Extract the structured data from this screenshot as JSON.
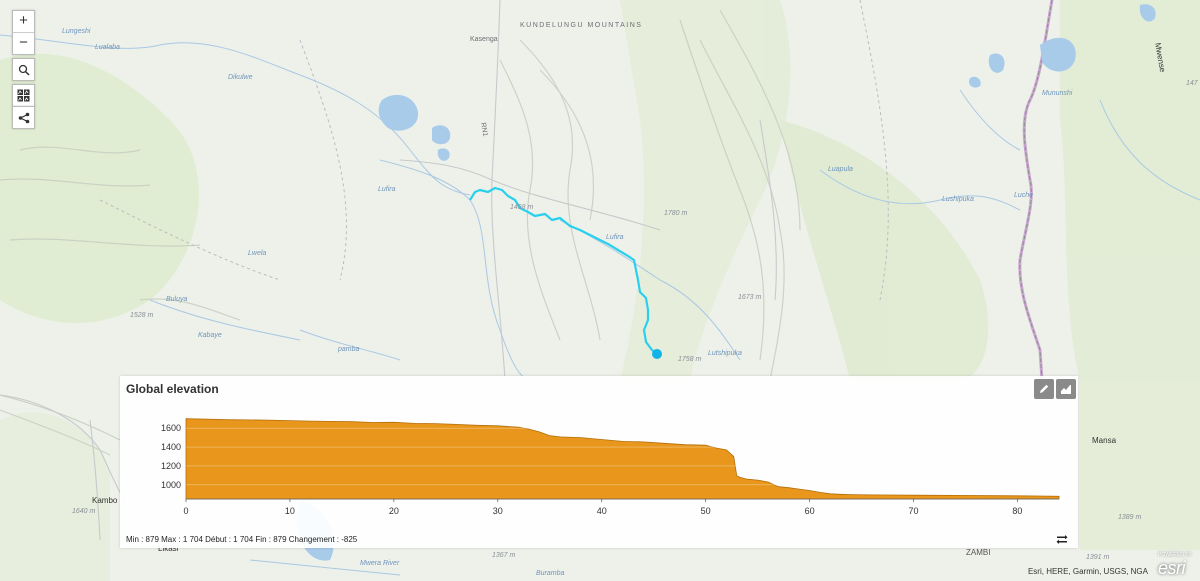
{
  "map": {
    "mountain_label": "KUNDELUNGU MOUNTAINS",
    "labels": [
      {
        "id": "lungeshi",
        "text": "Lungeshi",
        "kind": "river"
      },
      {
        "id": "lualaba",
        "text": "Lualaba",
        "kind": "river"
      },
      {
        "id": "dikulwe",
        "text": "Dikulwe",
        "kind": "river"
      },
      {
        "id": "kasenga",
        "text": "Kasenga",
        "kind": "river"
      },
      {
        "id": "lufira",
        "text": "Lufira",
        "kind": "river"
      },
      {
        "id": "luapula",
        "text": "Luapula",
        "kind": "river"
      },
      {
        "id": "lufira2",
        "text": "Lufira",
        "kind": "river"
      },
      {
        "id": "lutshipuka",
        "text": "Lutshipuka",
        "kind": "river"
      },
      {
        "id": "lushipuka",
        "text": "Lushipuka",
        "kind": "river"
      },
      {
        "id": "mununshi",
        "text": "Mununshi",
        "kind": "river"
      },
      {
        "id": "buluya",
        "text": "Buluya",
        "kind": "river"
      },
      {
        "id": "kabaye",
        "text": "Kabaye",
        "kind": "river"
      },
      {
        "id": "lwela",
        "text": "Lwela",
        "kind": "river"
      },
      {
        "id": "pamba",
        "text": "pamba",
        "kind": "river"
      },
      {
        "id": "mwera",
        "text": "Mwera River",
        "kind": "river"
      },
      {
        "id": "buramba",
        "text": "Buramba",
        "kind": "river"
      },
      {
        "id": "luche",
        "text": "Luche",
        "kind": "river"
      },
      {
        "id": "mwense",
        "text": "Mwense",
        "kind": "town"
      },
      {
        "id": "mansa",
        "text": "Mansa",
        "kind": "town"
      },
      {
        "id": "kambo",
        "text": "Kambo",
        "kind": "town"
      },
      {
        "id": "likasi",
        "text": "Likasi",
        "kind": "town"
      },
      {
        "id": "e1780",
        "text": "1780 m",
        "kind": "elev"
      },
      {
        "id": "e1673",
        "text": "1673 m",
        "kind": "elev"
      },
      {
        "id": "e1758",
        "text": "1758 m",
        "kind": "elev"
      },
      {
        "id": "e1458",
        "text": "1458 m",
        "kind": "elev"
      },
      {
        "id": "e1528",
        "text": "1528 m",
        "kind": "elev"
      },
      {
        "id": "e1640",
        "text": "1640 m",
        "kind": "elev"
      },
      {
        "id": "e1367",
        "text": "1367 m",
        "kind": "elev"
      },
      {
        "id": "e1389",
        "text": "1389 m",
        "kind": "elev"
      },
      {
        "id": "e1391",
        "text": "1391 m",
        "kind": "elev"
      },
      {
        "id": "e147",
        "text": "147",
        "kind": "elev"
      },
      {
        "id": "rn1",
        "text": "RN1",
        "kind": "road"
      },
      {
        "id": "zamb",
        "text": "ZAMBI",
        "kind": "road"
      }
    ]
  },
  "controls": {
    "zoom_in": "+",
    "zoom_out": "−"
  },
  "elevation": {
    "title": "Global elevation",
    "stats": "Min : 879 Max : 1 704 Début : 1 704 Fin : 879 Changement : -825",
    "fill_color": "#e8961c",
    "chart_data": {
      "type": "area",
      "x": [
        0,
        2,
        4,
        6,
        8,
        10,
        12,
        14,
        16,
        18,
        20,
        22,
        24,
        26,
        28,
        30,
        32,
        33,
        34,
        35,
        36,
        38,
        40,
        42,
        44,
        46,
        48,
        50,
        51,
        52,
        52.7,
        53,
        53.3,
        54,
        55,
        56,
        57,
        58,
        59,
        60,
        61,
        62,
        63,
        64,
        66,
        68,
        70,
        72,
        74,
        76,
        78,
        80,
        82,
        84
      ],
      "y": [
        1700,
        1695,
        1690,
        1688,
        1685,
        1680,
        1675,
        1672,
        1668,
        1660,
        1662,
        1650,
        1648,
        1640,
        1630,
        1625,
        1610,
        1590,
        1560,
        1520,
        1508,
        1500,
        1480,
        1460,
        1455,
        1440,
        1425,
        1420,
        1390,
        1370,
        1300,
        1095,
        1080,
        1060,
        1050,
        1030,
        980,
        970,
        955,
        940,
        920,
        905,
        900,
        897,
        893,
        892,
        890,
        889,
        888,
        887,
        885,
        884,
        882,
        879
      ],
      "xlim": [
        0,
        84
      ],
      "ylim": [
        850,
        1750
      ],
      "xticks": [
        0,
        10,
        20,
        30,
        40,
        50,
        60,
        70,
        80
      ],
      "yticks": [
        1000,
        1200,
        1400,
        1600
      ]
    }
  },
  "attribution": {
    "text": "Esri, HERE, Garmin, USGS, NGA",
    "powered": "POWERED BY",
    "logo": "esri"
  }
}
